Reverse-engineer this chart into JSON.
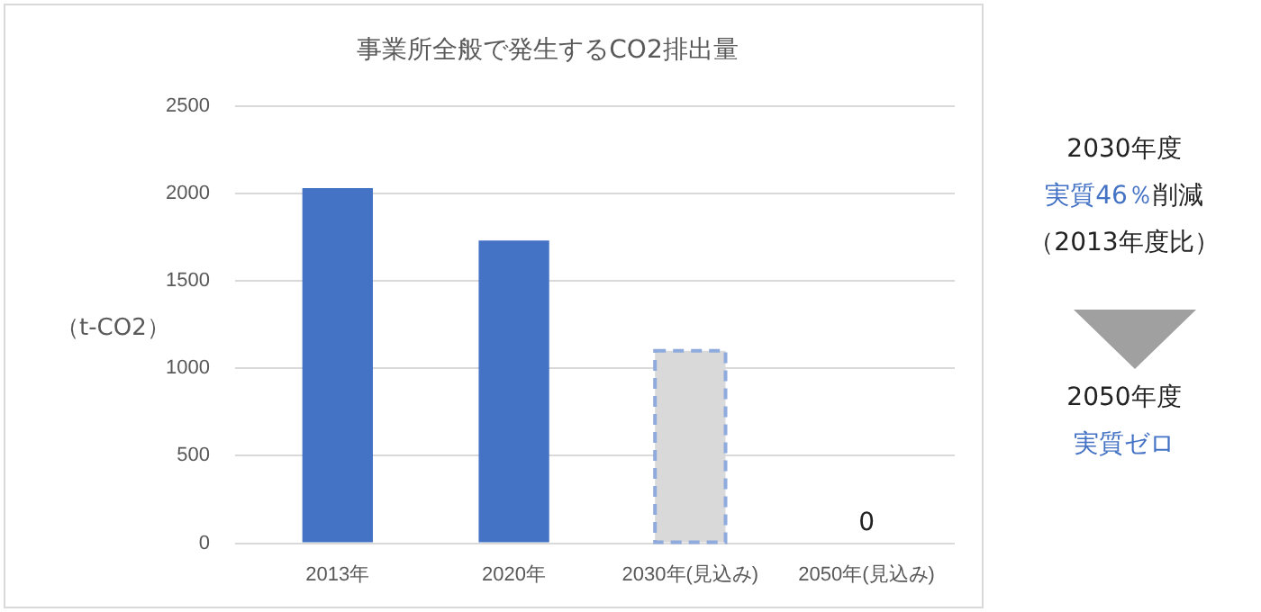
{
  "chart_data": {
    "type": "bar",
    "title": "事業所全般で発生するCO2排出量",
    "ylabel": "（t-CO2）",
    "categories": [
      "2013年",
      "2020年",
      "2030年(見込み)",
      "2050年(見込み)"
    ],
    "values": [
      2030,
      1730,
      1100,
      0
    ],
    "colors": [
      "#4472c4",
      "#4472c4",
      "#d9d9d9",
      "#4472c4"
    ],
    "value_labels": [
      null,
      null,
      null,
      "0"
    ],
    "ylim": [
      0,
      2500
    ],
    "yticks": [
      0,
      500,
      1000,
      1500,
      2000,
      2500
    ],
    "grid": "y",
    "legend": false,
    "annotations": [
      "2030年度",
      "実質46％",
      "削減",
      "（2013年度比）",
      "2050年度",
      "実質ゼロ"
    ]
  }
}
